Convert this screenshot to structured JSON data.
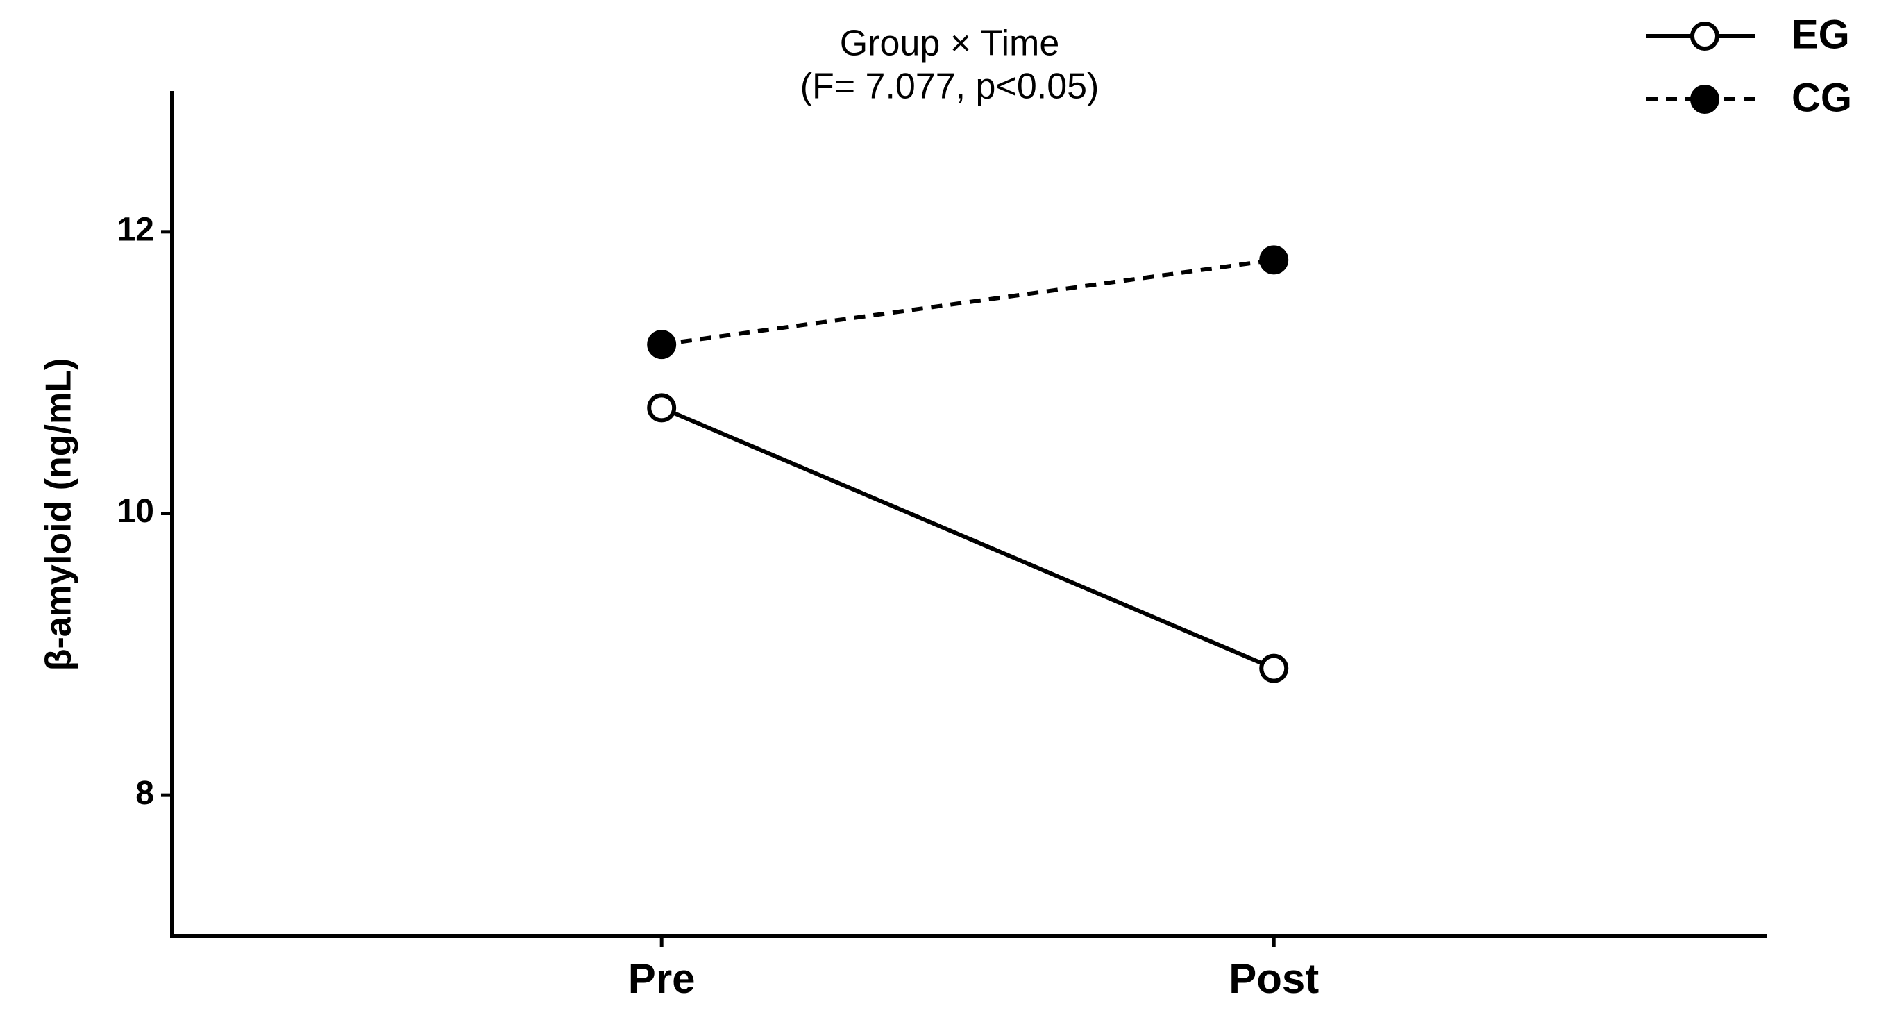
{
  "chart_data": {
    "type": "line",
    "title": "Group × Time",
    "subtitle": "(F= 7.077, p<0.05)",
    "y_label": "β-amyloid (ng/mL)",
    "categories": [
      "Pre",
      "Post"
    ],
    "series": [
      {
        "name": "EG",
        "color": "#000000",
        "linestyle": "solid",
        "marker": "open",
        "values": [
          10.75,
          8.9
        ]
      },
      {
        "name": "CG",
        "color": "#000000",
        "linestyle": "dashed",
        "marker": "filled",
        "values": [
          11.2,
          11.8
        ]
      }
    ],
    "ylim": [
      7,
      13
    ],
    "yticks": [
      8,
      10,
      12
    ],
    "legend": "upper right",
    "grid": false
  }
}
